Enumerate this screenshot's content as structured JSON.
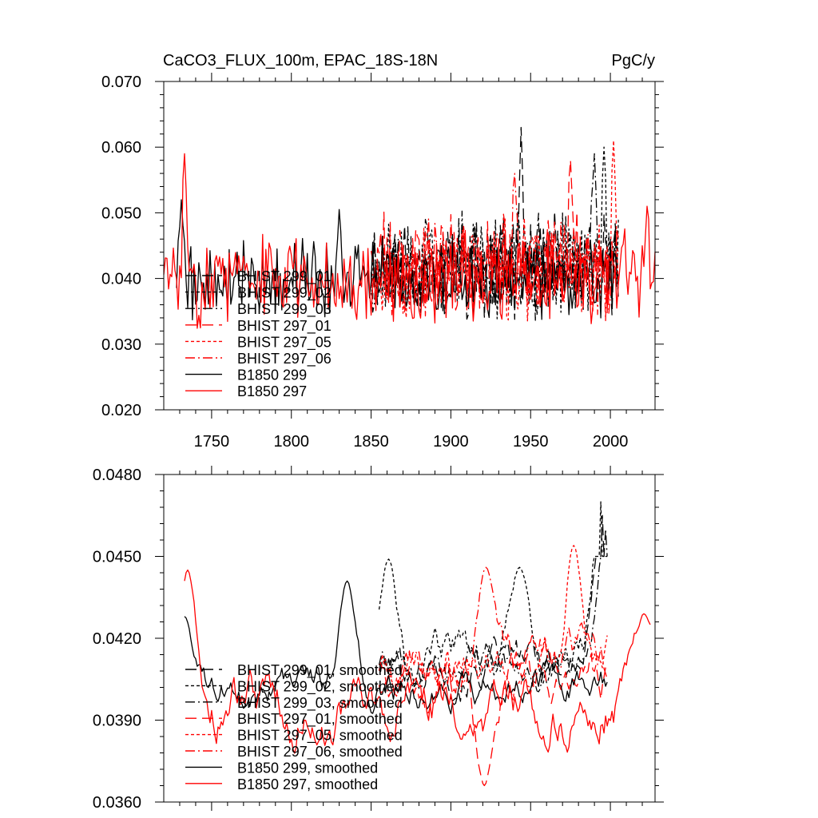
{
  "chart_data": [
    {
      "type": "line",
      "title": "CaCO3_FLUX_100m, EPAC_18S-18N",
      "units": "PgC/y",
      "xlim": [
        1720,
        2028
      ],
      "ylim": [
        0.02,
        0.07
      ],
      "x_ticks": [
        1750,
        1800,
        1850,
        1900,
        1950,
        2000
      ],
      "x_tick_labels": [
        "1750",
        "1800",
        "1850",
        "1900",
        "1950",
        "2000"
      ],
      "y_ticks": [
        0.02,
        0.03,
        0.04,
        0.05,
        0.06,
        0.07
      ],
      "y_tick_labels": [
        "0.020",
        "0.030",
        "0.040",
        "0.050",
        "0.060",
        "0.070"
      ],
      "legend_position": "lower-left",
      "series": [
        {
          "name": "BHIST 299_01",
          "color": "#000000",
          "dash": "long-dash",
          "x_start": 1850,
          "x_end": 2005,
          "level": 0.042,
          "spread": 0.0055,
          "min": 0.033,
          "max": 0.057,
          "peaks": [
            [
              1944,
              0.063
            ]
          ],
          "seed": 11
        },
        {
          "name": "BHIST 299_02",
          "color": "#000000",
          "dash": "short-dash",
          "x_start": 1850,
          "x_end": 2005,
          "level": 0.042,
          "spread": 0.0055,
          "min": 0.032,
          "max": 0.058,
          "peaks": [
            [
              1996,
              0.06
            ]
          ],
          "seed": 23
        },
        {
          "name": "BHIST 299_03",
          "color": "#000000",
          "dash": "dash-dot",
          "x_start": 1850,
          "x_end": 2005,
          "level": 0.042,
          "spread": 0.0055,
          "min": 0.033,
          "max": 0.059,
          "peaks": [
            [
              1990,
              0.059
            ]
          ],
          "seed": 37
        },
        {
          "name": "BHIST 297_01",
          "color": "#ff0000",
          "dash": "long-dash",
          "x_start": 1850,
          "x_end": 2005,
          "level": 0.042,
          "spread": 0.0055,
          "min": 0.031,
          "max": 0.056,
          "peaks": [
            [
              1975,
              0.058
            ]
          ],
          "seed": 41
        },
        {
          "name": "BHIST 297_05",
          "color": "#ff0000",
          "dash": "short-dash",
          "x_start": 1850,
          "x_end": 2005,
          "level": 0.041,
          "spread": 0.0055,
          "min": 0.029,
          "max": 0.057,
          "peaks": [
            [
              2002,
              0.061
            ]
          ],
          "seed": 53
        },
        {
          "name": "BHIST 297_06",
          "color": "#ff0000",
          "dash": "dash-dot",
          "x_start": 1850,
          "x_end": 2005,
          "level": 0.042,
          "spread": 0.0055,
          "min": 0.03,
          "max": 0.057,
          "peaks": [
            [
              1940,
              0.056
            ]
          ],
          "seed": 67
        },
        {
          "name": "B1850 299",
          "color": "#000000",
          "dash": "solid",
          "x_start": 1728,
          "x_end": 2004,
          "level": 0.04,
          "spread": 0.0045,
          "min": 0.033,
          "max": 0.057,
          "peaks": [
            [
              1731,
              0.052
            ],
            [
              1830,
              0.0505
            ]
          ],
          "seed": 79
        },
        {
          "name": "B1850 297",
          "color": "#ff0000",
          "dash": "solid",
          "x_start": 1720,
          "x_end": 2028,
          "level": 0.04,
          "spread": 0.005,
          "min": 0.029,
          "max": 0.057,
          "peaks": [
            [
              1733,
              0.059
            ],
            [
              2023,
              0.051
            ]
          ],
          "seed": 83
        }
      ]
    },
    {
      "type": "line",
      "title": "",
      "units": "",
      "xlim": [
        1720,
        2028
      ],
      "ylim": [
        0.036,
        0.048
      ],
      "x_ticks": [
        1750,
        1800,
        1850,
        1900,
        1950,
        2000
      ],
      "y_ticks": [
        0.036,
        0.039,
        0.042,
        0.045,
        0.048
      ],
      "y_tick_labels": [
        "0.0360",
        "0.0390",
        "0.0420",
        "0.0450",
        "0.0480"
      ],
      "legend_position": "lower-left",
      "series": [
        {
          "name": "BHIST 299_01, smoothed",
          "color": "#000000",
          "dash": "long-dash",
          "x_start": 1855,
          "x_end": 1998,
          "level": 0.041,
          "spread": 0.0009,
          "min": 0.0378,
          "max": 0.045,
          "peaks": [
            [
              1995,
              0.0465
            ]
          ],
          "seed": 101
        },
        {
          "name": "BHIST 299_02, smoothed",
          "color": "#000000",
          "dash": "short-dash",
          "x_start": 1855,
          "x_end": 1998,
          "level": 0.0415,
          "spread": 0.001,
          "min": 0.038,
          "max": 0.045,
          "peaks": [
            [
              1861,
              0.0449
            ],
            [
              1943,
              0.0446
            ],
            [
              1994,
              0.047
            ]
          ],
          "seed": 113
        },
        {
          "name": "BHIST 299_03, smoothed",
          "color": "#000000",
          "dash": "dash-dot",
          "x_start": 1855,
          "x_end": 1998,
          "level": 0.0412,
          "spread": 0.0009,
          "min": 0.038,
          "max": 0.045,
          "peaks": [
            [
              1997,
              0.046
            ]
          ],
          "seed": 127
        },
        {
          "name": "BHIST 297_01, smoothed",
          "color": "#ff0000",
          "dash": "long-dash",
          "x_start": 1855,
          "x_end": 1998,
          "level": 0.0405,
          "spread": 0.0011,
          "min": 0.0366,
          "max": 0.0445,
          "peaks": [
            [
              1921,
              0.0366
            ]
          ],
          "seed": 131
        },
        {
          "name": "BHIST 297_05, smoothed",
          "color": "#ff0000",
          "dash": "short-dash",
          "x_start": 1855,
          "x_end": 1998,
          "level": 0.041,
          "spread": 0.001,
          "min": 0.0372,
          "max": 0.0455,
          "peaks": [
            [
              1977,
              0.0454
            ]
          ],
          "seed": 149
        },
        {
          "name": "BHIST 297_06, smoothed",
          "color": "#ff0000",
          "dash": "dash-dot",
          "x_start": 1855,
          "x_end": 1998,
          "level": 0.0412,
          "spread": 0.001,
          "min": 0.0372,
          "max": 0.045,
          "peaks": [
            [
              1922,
              0.0446
            ]
          ],
          "seed": 157
        },
        {
          "name": "B1850 299, smoothed",
          "color": "#000000",
          "dash": "solid",
          "x_start": 1733,
          "x_end": 1998,
          "level": 0.0403,
          "spread": 0.0008,
          "min": 0.038,
          "max": 0.0445,
          "peaks": [
            [
              1733,
              0.0428
            ],
            [
              1835,
              0.0441
            ]
          ],
          "seed": 163
        },
        {
          "name": "B1850 297, smoothed",
          "color": "#ff0000",
          "dash": "solid",
          "x_start": 1733,
          "x_end": 2025,
          "level": 0.0395,
          "spread": 0.0012,
          "min": 0.0367,
          "max": 0.0445,
          "peaks": [
            [
              1735,
              0.0445
            ],
            [
              2021,
              0.0429
            ]
          ],
          "seed": 173
        }
      ]
    }
  ]
}
